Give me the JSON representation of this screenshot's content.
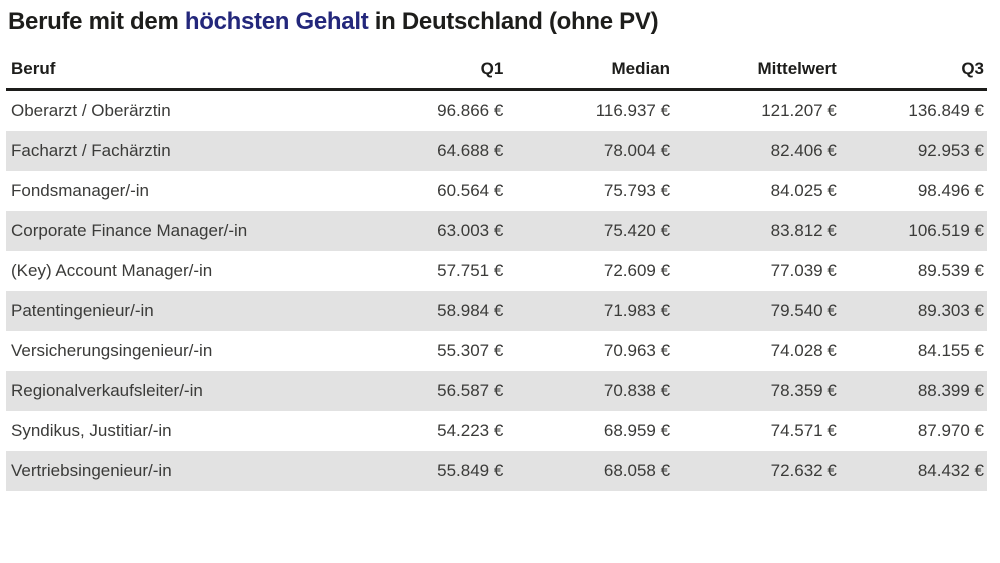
{
  "title": {
    "prefix": "Berufe mit dem ",
    "highlight": "höchsten Gehalt",
    "suffix": " in Deutschland (ohne PV)"
  },
  "colors": {
    "title_text": "#1d1d1b",
    "title_highlight": "#23277b",
    "header_rule": "#1c1c1a",
    "cell_text": "#3b3b39",
    "row_band": "#e2e2e2",
    "background": "#ffffff"
  },
  "chart_data": {
    "type": "table",
    "title": "Berufe mit dem höchsten Gehalt in Deutschland (ohne PV)",
    "columns": [
      "Beruf",
      "Q1",
      "Median",
      "Mittelwert",
      "Q3"
    ],
    "rows": [
      [
        "Oberarzt / Oberärztin",
        "96.866 €",
        "116.937 €",
        "121.207 €",
        "136.849 €"
      ],
      [
        "Facharzt / Fachärztin",
        "64.688 €",
        "78.004 €",
        "82.406 €",
        "92.953 €"
      ],
      [
        "Fondsmanager/-in",
        "60.564 €",
        "75.793 €",
        "84.025 €",
        "98.496 €"
      ],
      [
        "Corporate Finance Manager/-in",
        "63.003 €",
        "75.420 €",
        "83.812 €",
        "106.519 €"
      ],
      [
        "(Key) Account Manager/-in",
        "57.751 €",
        "72.609 €",
        "77.039 €",
        "89.539 €"
      ],
      [
        "Patentingenieur/-in",
        "58.984 €",
        "71.983 €",
        "79.540 €",
        "89.303 €"
      ],
      [
        "Versicherungsingenieur/-in",
        "55.307 €",
        "70.963 €",
        "74.028 €",
        "84.155 €"
      ],
      [
        "Regionalverkaufsleiter/-in",
        "56.587 €",
        "70.838 €",
        "78.359 €",
        "88.399 €"
      ],
      [
        "Syndikus, Justitiar/-in",
        "54.223 €",
        "68.959 €",
        "74.571 €",
        "87.970 €"
      ],
      [
        "Vertriebsingenieur/-in",
        "55.849 €",
        "68.058 €",
        "72.632 €",
        "84.432 €"
      ]
    ],
    "layout": {
      "first_column_align": "left",
      "value_columns_align": "right",
      "alternating_rows": true,
      "currency": "EUR"
    }
  }
}
